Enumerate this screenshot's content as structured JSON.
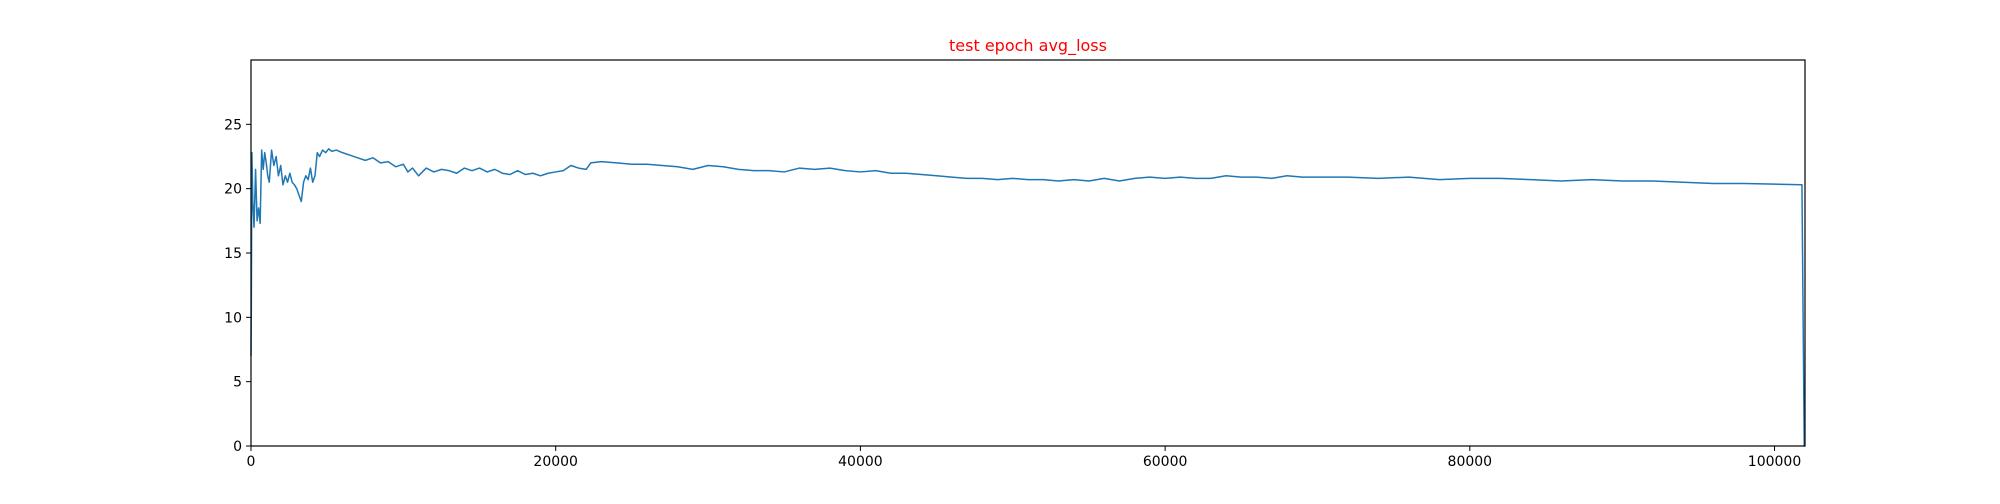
{
  "chart_data": {
    "type": "line",
    "title": "test epoch avg_loss",
    "title_color": "#ff0000",
    "xlabel": "",
    "ylabel": "",
    "xlim": [
      0,
      102000
    ],
    "ylim": [
      0,
      30
    ],
    "x_ticks": [
      0,
      20000,
      40000,
      60000,
      80000,
      100000
    ],
    "x_tick_labels": [
      "0",
      "20000",
      "40000",
      "60000",
      "80000",
      "100000"
    ],
    "y_ticks": [
      0,
      5,
      10,
      15,
      20,
      25
    ],
    "y_tick_labels": [
      "0",
      "5",
      "10",
      "15",
      "20",
      "25"
    ],
    "grid": false,
    "legend": "none",
    "series": [
      {
        "color": "#1f77b4",
        "x": [
          0,
          20,
          60,
          120,
          200,
          300,
          400,
          500,
          600,
          700,
          800,
          900,
          1000,
          1100,
          1200,
          1350,
          1500,
          1650,
          1800,
          1950,
          2100,
          2250,
          2400,
          2550,
          2700,
          2850,
          3000,
          3150,
          3300,
          3450,
          3600,
          3750,
          3900,
          4050,
          4200,
          4350,
          4500,
          4700,
          4900,
          5100,
          5300,
          5600,
          6000,
          6500,
          7000,
          7500,
          8000,
          8500,
          9000,
          9500,
          10000,
          10300,
          10600,
          11000,
          11500,
          12000,
          12500,
          13000,
          13500,
          14000,
          14500,
          15000,
          15500,
          16000,
          16500,
          17000,
          17500,
          18000,
          18500,
          19000,
          19500,
          20000,
          20500,
          21000,
          21500,
          22000,
          22300,
          23000,
          24000,
          25000,
          26000,
          27000,
          28000,
          29000,
          30000,
          31000,
          32000,
          33000,
          34000,
          35000,
          36000,
          37000,
          38000,
          39000,
          40000,
          41000,
          42000,
          43000,
          44000,
          45000,
          46000,
          47000,
          48000,
          49000,
          50000,
          51000,
          52000,
          53000,
          54000,
          55000,
          56000,
          57000,
          58000,
          59000,
          60000,
          61000,
          62000,
          63000,
          64000,
          65000,
          66000,
          67000,
          68000,
          69000,
          70000,
          72000,
          74000,
          76000,
          78000,
          80000,
          82000,
          84000,
          86000,
          88000,
          90000,
          92000,
          94000,
          96000,
          98000,
          100000,
          101800,
          101950,
          102000
        ],
        "y": [
          7.0,
          10.5,
          22.8,
          19.0,
          17.0,
          21.5,
          17.5,
          18.5,
          17.3,
          23.0,
          21.5,
          22.8,
          22.0,
          21.0,
          20.5,
          23.0,
          21.8,
          22.5,
          21.0,
          21.8,
          20.3,
          21.0,
          20.5,
          21.2,
          20.5,
          20.3,
          20.0,
          19.5,
          19.0,
          20.5,
          21.0,
          20.7,
          21.6,
          20.5,
          21.0,
          22.8,
          22.5,
          23.0,
          22.8,
          23.1,
          22.9,
          23.0,
          22.8,
          22.6,
          22.4,
          22.2,
          22.4,
          22.0,
          22.1,
          21.7,
          21.9,
          21.3,
          21.6,
          21.0,
          21.6,
          21.3,
          21.5,
          21.4,
          21.2,
          21.6,
          21.4,
          21.6,
          21.3,
          21.5,
          21.2,
          21.1,
          21.4,
          21.1,
          21.2,
          21.0,
          21.2,
          21.3,
          21.4,
          21.8,
          21.6,
          21.5,
          22.0,
          22.1,
          22.0,
          21.9,
          21.9,
          21.8,
          21.7,
          21.5,
          21.8,
          21.7,
          21.5,
          21.4,
          21.4,
          21.3,
          21.6,
          21.5,
          21.6,
          21.4,
          21.3,
          21.4,
          21.2,
          21.2,
          21.1,
          21.0,
          20.9,
          20.8,
          20.8,
          20.7,
          20.8,
          20.7,
          20.7,
          20.6,
          20.7,
          20.6,
          20.8,
          20.6,
          20.8,
          20.9,
          20.8,
          20.9,
          20.8,
          20.8,
          21.0,
          20.9,
          20.9,
          20.8,
          21.0,
          20.9,
          20.9,
          20.9,
          20.8,
          20.9,
          20.7,
          20.8,
          20.8,
          20.7,
          20.6,
          20.7,
          20.6,
          20.6,
          20.5,
          20.4,
          20.4,
          20.35,
          20.3,
          0.0,
          0.0
        ]
      }
    ]
  }
}
